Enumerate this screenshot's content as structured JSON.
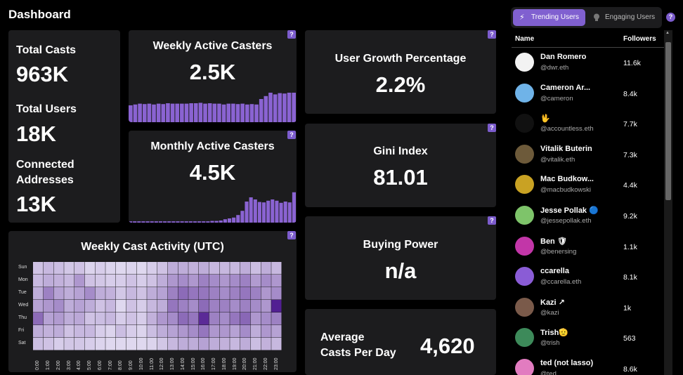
{
  "page": {
    "title": "Dashboard",
    "help": "?"
  },
  "totals": {
    "casts_label": "Total Casts",
    "casts_value": "963K",
    "users_label": "Total Users",
    "users_value": "18K",
    "addresses_label_1": "Connected",
    "addresses_label_2": "Addresses",
    "addresses_value": "13K"
  },
  "weekly_active": {
    "label": "Weekly Active Casters",
    "value": "2.5K",
    "bars": [
      0.4,
      0.42,
      0.44,
      0.43,
      0.44,
      0.42,
      0.44,
      0.43,
      0.45,
      0.44,
      0.44,
      0.44,
      0.44,
      0.45,
      0.45,
      0.46,
      0.44,
      0.45,
      0.44,
      0.44,
      0.42,
      0.44,
      0.44,
      0.43,
      0.44,
      0.42,
      0.43,
      0.42,
      0.55,
      0.62,
      0.7,
      0.66,
      0.69,
      0.68,
      0.7,
      0.7
    ]
  },
  "monthly_active": {
    "label": "Monthly Active Casters",
    "value": "4.5K",
    "bars": [
      0.03,
      0.03,
      0.03,
      0.03,
      0.03,
      0.03,
      0.03,
      0.03,
      0.03,
      0.03,
      0.03,
      0.03,
      0.03,
      0.03,
      0.03,
      0.03,
      0.03,
      0.03,
      0.03,
      0.04,
      0.04,
      0.05,
      0.08,
      0.1,
      0.12,
      0.18,
      0.28,
      0.5,
      0.6,
      0.55,
      0.49,
      0.48,
      0.52,
      0.55,
      0.52,
      0.47,
      0.5,
      0.48,
      0.72
    ]
  },
  "user_growth": {
    "label": "User Growth Percentage",
    "value": "2.2%"
  },
  "gini": {
    "label": "Gini Index",
    "value": "81.01"
  },
  "buying_power": {
    "label": "Buying Power",
    "value": "n/a"
  },
  "avg_casts": {
    "label_1": "Average",
    "label_2": "Casts Per Day",
    "value": "4,620"
  },
  "heatmap": {
    "title": "Weekly Cast Activity (UTC)",
    "days": [
      "Sun",
      "Mon",
      "Tue",
      "Wed",
      "Thu",
      "Fri",
      "Sat"
    ],
    "hours": [
      "0:00",
      "1:00",
      "2:00",
      "3:00",
      "4:00",
      "5:00",
      "6:00",
      "7:00",
      "8:00",
      "9:00",
      "10:00",
      "11:00",
      "12:00",
      "13:00",
      "14:00",
      "15:00",
      "16:00",
      "17:00",
      "18:00",
      "19:00",
      "20:00",
      "21:00",
      "22:00",
      "23:00"
    ],
    "values": [
      [
        0.2,
        0.25,
        0.22,
        0.18,
        0.2,
        0.12,
        0.15,
        0.12,
        0.1,
        0.12,
        0.1,
        0.15,
        0.2,
        0.3,
        0.3,
        0.28,
        0.3,
        0.25,
        0.25,
        0.25,
        0.3,
        0.22,
        0.3,
        0.25
      ],
      [
        0.25,
        0.3,
        0.28,
        0.25,
        0.4,
        0.2,
        0.18,
        0.15,
        0.15,
        0.2,
        0.15,
        0.2,
        0.3,
        0.4,
        0.45,
        0.4,
        0.5,
        0.45,
        0.4,
        0.45,
        0.5,
        0.38,
        0.45,
        0.4
      ],
      [
        0.3,
        0.5,
        0.35,
        0.3,
        0.35,
        0.45,
        0.3,
        0.28,
        0.18,
        0.25,
        0.2,
        0.3,
        0.35,
        0.5,
        0.6,
        0.55,
        0.55,
        0.5,
        0.45,
        0.5,
        0.55,
        0.5,
        0.4,
        0.45
      ],
      [
        0.35,
        0.4,
        0.45,
        0.3,
        0.35,
        0.3,
        0.2,
        0.25,
        0.1,
        0.2,
        0.15,
        0.25,
        0.3,
        0.55,
        0.5,
        0.45,
        0.6,
        0.5,
        0.5,
        0.45,
        0.5,
        0.45,
        0.4,
        0.95
      ],
      [
        0.6,
        0.35,
        0.38,
        0.3,
        0.32,
        0.2,
        0.22,
        0.25,
        0.15,
        0.2,
        0.15,
        0.28,
        0.4,
        0.45,
        0.6,
        0.55,
        0.9,
        0.5,
        0.45,
        0.55,
        0.62,
        0.4,
        0.45,
        0.5
      ],
      [
        0.3,
        0.28,
        0.3,
        0.2,
        0.25,
        0.25,
        0.15,
        0.12,
        0.22,
        0.15,
        0.12,
        0.22,
        0.3,
        0.35,
        0.4,
        0.45,
        0.55,
        0.4,
        0.4,
        0.35,
        0.45,
        0.3,
        0.4,
        0.35
      ],
      [
        0.22,
        0.2,
        0.15,
        0.18,
        0.18,
        0.15,
        0.12,
        0.1,
        0.1,
        0.1,
        0.1,
        0.12,
        0.18,
        0.25,
        0.3,
        0.3,
        0.35,
        0.3,
        0.28,
        0.25,
        0.3,
        0.22,
        0.28,
        0.25
      ]
    ]
  },
  "tabs": {
    "trending": "Trending Users",
    "engaging": "Engaging Users",
    "help": "?"
  },
  "table": {
    "col_name": "Name",
    "col_followers": "Followers",
    "rows": [
      {
        "name": "Dan Romero",
        "handle": "@dwr.eth",
        "followers": "11.6k",
        "color": "#f2f2f2"
      },
      {
        "name": "Cameron Ar...",
        "handle": "@cameron",
        "followers": "8.4k",
        "color": "#6fb3e8"
      },
      {
        "name": "🖖",
        "handle": "@accountless.eth",
        "followers": "7.7k",
        "color": "#111111"
      },
      {
        "name": "Vitalik Buterin",
        "handle": "@vitalik.eth",
        "followers": "7.3k",
        "color": "#6d5a3a"
      },
      {
        "name": "Mac Budkow...",
        "handle": "@macbudkowski",
        "followers": "4.4k",
        "color": "#c9a223"
      },
      {
        "name": "Jesse Pollak 🔵",
        "handle": "@jessepollak.eth",
        "followers": "9.2k",
        "color": "#7ec46a"
      },
      {
        "name": "Ben 🛡",
        "handle": "@benersing",
        "followers": "1.1k",
        "color": "#c236a8"
      },
      {
        "name": "ccarella",
        "handle": "@ccarella.eth",
        "followers": "8.1k",
        "color": "#8a5cd6"
      },
      {
        "name": "Kazi ↗",
        "handle": "@kazi",
        "followers": "1k",
        "color": "#7a5a4a"
      },
      {
        "name": "Trish🫡",
        "handle": "@trish",
        "followers": "563",
        "color": "#3d8a5a"
      },
      {
        "name": "ted (not lasso)",
        "handle": "@ted",
        "followers": "8.6k",
        "color": "#e27cc0"
      }
    ]
  },
  "colors": {
    "accent": "#8060d0",
    "card": "#1c1c1e",
    "bar": "#8a63d2"
  }
}
